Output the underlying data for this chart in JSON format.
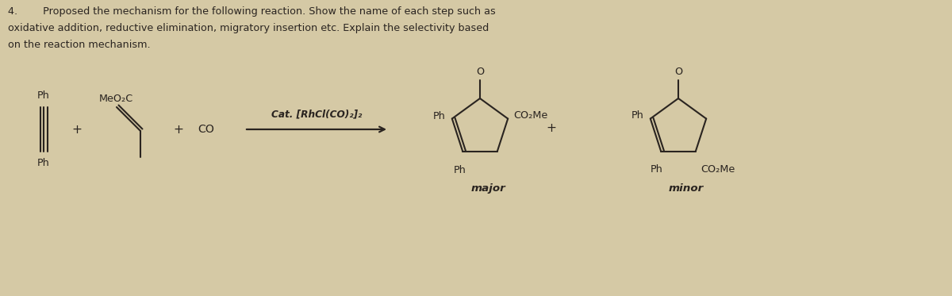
{
  "bg_color": "#d5c9a5",
  "text_color": "#2a2420",
  "header_line1": "4.        Proposed the mechanism for the following reaction. Show the name of each step such as",
  "header_line2": "oxidative addition, reductive elimination, migratory insertion etc. Explain the selectivity based",
  "header_line3": "on the reaction mechanism.",
  "catalyst": "Cat. [RhCl(CO)₂]₂",
  "major_caption": "major",
  "minor_caption": "minor",
  "fig_width": 12.0,
  "fig_height": 3.73,
  "dpi": 100
}
